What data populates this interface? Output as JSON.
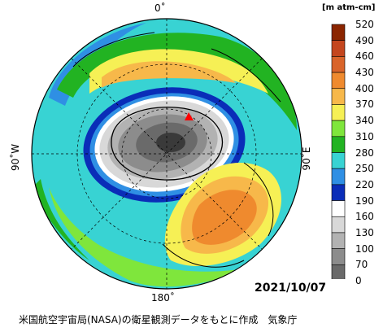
{
  "map": {
    "meridians": {
      "top": "0˚",
      "bottom": "180˚",
      "left": "90˚W",
      "right": "90˚E"
    },
    "date": "2021/10/07",
    "credit": "米国航空宇宙局(NASA)の衛星観測データをもとに作成　気象庁",
    "station_marker": "triangle-red"
  },
  "legend": {
    "unit": "[m atm-cm]",
    "ticks": [
      "520",
      "490",
      "460",
      "430",
      "400",
      "370",
      "340",
      "310",
      "280",
      "250",
      "220",
      "190",
      "160",
      "130",
      "100",
      "70",
      "0"
    ],
    "colors": [
      "#8b2500",
      "#c4461e",
      "#d9642a",
      "#ef8a2e",
      "#f7b84a",
      "#f6f055",
      "#7fe63c",
      "#22b322",
      "#38d3d3",
      "#2f8fe4",
      "#0a2db8",
      "#ffffff",
      "#d8d8d8",
      "#b2b2b2",
      "#8c8c8c",
      "#6a6a6a",
      "#3a3a3a"
    ]
  }
}
